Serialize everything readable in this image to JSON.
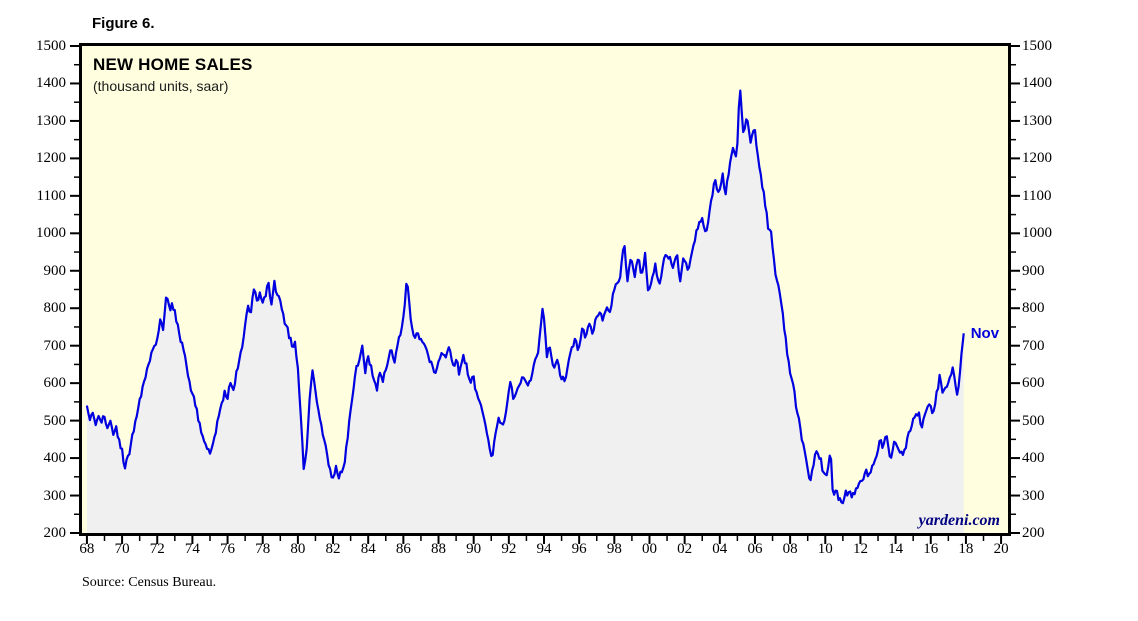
{
  "figure_label": "Figure 6.",
  "source": "Source: Census Bureau.",
  "chart_data": {
    "type": "area",
    "title": "NEW HOME SALES",
    "subtitle": "(thousand units, saar)",
    "watermark": "yardeni.com",
    "legend_position": "none",
    "grid": false,
    "colors": {
      "plot_background": "#ffffe0",
      "area_fill": "#f0f0f0",
      "line": "#0000e0",
      "last_label_color": "#0000dd",
      "watermark_color": "#000080",
      "axis_color": "#000000"
    },
    "x_axis": {
      "label_years_start": 1968,
      "label_step": 2,
      "tick_labels": [
        "68",
        "70",
        "72",
        "74",
        "76",
        "78",
        "80",
        "82",
        "84",
        "86",
        "88",
        "90",
        "92",
        "94",
        "96",
        "98",
        "00",
        "02",
        "04",
        "06",
        "08",
        "10",
        "12",
        "14",
        "16",
        "18",
        "20"
      ],
      "minor_tick_years": [
        1969,
        1971,
        1973,
        1975,
        1977,
        1979,
        1981,
        1983,
        1985,
        1987,
        1989,
        1991,
        1993,
        1995,
        1997,
        1999,
        2001,
        2003,
        2005,
        2007,
        2009,
        2011,
        2013,
        2015,
        2017,
        2019
      ]
    },
    "y_axis": {
      "min": 200,
      "max": 1500,
      "major_tick_values": [
        200,
        300,
        400,
        500,
        600,
        700,
        800,
        900,
        1000,
        1100,
        1200,
        1300,
        1400,
        1500
      ],
      "minor_tick_values": [
        250,
        350,
        450,
        550,
        650,
        750,
        850,
        950,
        1050,
        1150,
        1250,
        1350,
        1450
      ]
    },
    "noise_amplitude": 12,
    "series": [
      {
        "name": "New home sales (thousand units, saar)",
        "last_point_label": "Nov",
        "last_value": 733,
        "points": [
          [
            1968.0,
            540
          ],
          [
            1968.17,
            500
          ],
          [
            1968.33,
            522
          ],
          [
            1968.5,
            488
          ],
          [
            1968.67,
            512
          ],
          [
            1968.83,
            495
          ],
          [
            1969.0,
            510
          ],
          [
            1969.17,
            480
          ],
          [
            1969.33,
            500
          ],
          [
            1969.5,
            462
          ],
          [
            1969.67,
            485
          ],
          [
            1969.83,
            450
          ],
          [
            1970.0,
            425
          ],
          [
            1970.17,
            372
          ],
          [
            1970.33,
            405
          ],
          [
            1970.5,
            438
          ],
          [
            1970.67,
            472
          ],
          [
            1970.83,
            510
          ],
          [
            1971.0,
            558
          ],
          [
            1971.25,
            605
          ],
          [
            1971.5,
            650
          ],
          [
            1971.75,
            690
          ],
          [
            1972.0,
            718
          ],
          [
            1972.17,
            772
          ],
          [
            1972.33,
            740
          ],
          [
            1972.55,
            845
          ],
          [
            1972.7,
            788
          ],
          [
            1972.85,
            812
          ],
          [
            1973.0,
            795
          ],
          [
            1973.17,
            756
          ],
          [
            1973.33,
            710
          ],
          [
            1973.5,
            688
          ],
          [
            1973.67,
            645
          ],
          [
            1973.83,
            605
          ],
          [
            1974.0,
            572
          ],
          [
            1974.17,
            540
          ],
          [
            1974.33,
            500
          ],
          [
            1974.5,
            468
          ],
          [
            1974.67,
            445
          ],
          [
            1974.83,
            425
          ],
          [
            1975.0,
            412
          ],
          [
            1975.17,
            438
          ],
          [
            1975.33,
            465
          ],
          [
            1975.5,
            512
          ],
          [
            1975.67,
            548
          ],
          [
            1975.83,
            580
          ],
          [
            1976.0,
            558
          ],
          [
            1976.17,
            602
          ],
          [
            1976.33,
            580
          ],
          [
            1976.5,
            632
          ],
          [
            1976.67,
            662
          ],
          [
            1976.83,
            695
          ],
          [
            1977.0,
            755
          ],
          [
            1977.17,
            808
          ],
          [
            1977.33,
            788
          ],
          [
            1977.5,
            850
          ],
          [
            1977.67,
            820
          ],
          [
            1977.83,
            842
          ],
          [
            1978.0,
            815
          ],
          [
            1978.17,
            832
          ],
          [
            1978.33,
            868
          ],
          [
            1978.5,
            810
          ],
          [
            1978.67,
            875
          ],
          [
            1978.83,
            835
          ],
          [
            1979.0,
            820
          ],
          [
            1979.17,
            785
          ],
          [
            1979.33,
            755
          ],
          [
            1979.5,
            720
          ],
          [
            1979.67,
            698
          ],
          [
            1979.83,
            712
          ],
          [
            1980.0,
            640
          ],
          [
            1980.17,
            510
          ],
          [
            1980.33,
            370
          ],
          [
            1980.5,
            425
          ],
          [
            1980.67,
            560
          ],
          [
            1980.83,
            635
          ],
          [
            1981.0,
            578
          ],
          [
            1981.17,
            528
          ],
          [
            1981.33,
            490
          ],
          [
            1981.5,
            448
          ],
          [
            1981.67,
            408
          ],
          [
            1981.83,
            372
          ],
          [
            1982.0,
            348
          ],
          [
            1982.17,
            380
          ],
          [
            1982.33,
            345
          ],
          [
            1982.5,
            362
          ],
          [
            1982.67,
            390
          ],
          [
            1982.83,
            452
          ],
          [
            1983.0,
            528
          ],
          [
            1983.17,
            588
          ],
          [
            1983.33,
            645
          ],
          [
            1983.5,
            662
          ],
          [
            1983.67,
            700
          ],
          [
            1983.83,
            625
          ],
          [
            1984.0,
            672
          ],
          [
            1984.17,
            648
          ],
          [
            1984.33,
            608
          ],
          [
            1984.5,
            580
          ],
          [
            1984.67,
            628
          ],
          [
            1984.83,
            602
          ],
          [
            1985.0,
            635
          ],
          [
            1985.17,
            668
          ],
          [
            1985.33,
            688
          ],
          [
            1985.5,
            655
          ],
          [
            1985.67,
            702
          ],
          [
            1985.83,
            728
          ],
          [
            1986.0,
            778
          ],
          [
            1986.2,
            880
          ],
          [
            1986.4,
            772
          ],
          [
            1986.6,
            722
          ],
          [
            1986.8,
            742
          ],
          [
            1987.0,
            718
          ],
          [
            1987.2,
            702
          ],
          [
            1987.4,
            672
          ],
          [
            1987.6,
            655
          ],
          [
            1987.8,
            622
          ],
          [
            1988.0,
            658
          ],
          [
            1988.2,
            688
          ],
          [
            1988.4,
            668
          ],
          [
            1988.6,
            698
          ],
          [
            1988.8,
            652
          ],
          [
            1989.0,
            662
          ],
          [
            1989.2,
            622
          ],
          [
            1989.4,
            678
          ],
          [
            1989.6,
            648
          ],
          [
            1989.8,
            602
          ],
          [
            1990.0,
            618
          ],
          [
            1990.2,
            560
          ],
          [
            1990.4,
            542
          ],
          [
            1990.6,
            502
          ],
          [
            1990.8,
            462
          ],
          [
            1991.05,
            400
          ],
          [
            1991.25,
            468
          ],
          [
            1991.45,
            508
          ],
          [
            1991.65,
            488
          ],
          [
            1991.85,
            522
          ],
          [
            1992.05,
            605
          ],
          [
            1992.25,
            558
          ],
          [
            1992.45,
            572
          ],
          [
            1992.65,
            598
          ],
          [
            1992.85,
            618
          ],
          [
            1993.05,
            590
          ],
          [
            1993.25,
            608
          ],
          [
            1993.45,
            648
          ],
          [
            1993.65,
            675
          ],
          [
            1993.95,
            810
          ],
          [
            1994.15,
            668
          ],
          [
            1994.35,
            698
          ],
          [
            1994.55,
            632
          ],
          [
            1994.75,
            662
          ],
          [
            1994.95,
            618
          ],
          [
            1995.15,
            602
          ],
          [
            1995.35,
            642
          ],
          [
            1995.55,
            688
          ],
          [
            1995.75,
            718
          ],
          [
            1995.95,
            682
          ],
          [
            1996.15,
            748
          ],
          [
            1996.35,
            718
          ],
          [
            1996.55,
            762
          ],
          [
            1996.75,
            732
          ],
          [
            1996.95,
            782
          ],
          [
            1997.15,
            792
          ],
          [
            1997.35,
            762
          ],
          [
            1997.55,
            812
          ],
          [
            1997.75,
            790
          ],
          [
            1997.95,
            842
          ],
          [
            1998.15,
            862
          ],
          [
            1998.35,
            888
          ],
          [
            1998.55,
            985
          ],
          [
            1998.75,
            872
          ],
          [
            1998.95,
            940
          ],
          [
            1999.15,
            882
          ],
          [
            1999.35,
            932
          ],
          [
            1999.55,
            892
          ],
          [
            1999.75,
            948
          ],
          [
            1999.95,
            832
          ],
          [
            2000.15,
            878
          ],
          [
            2000.35,
            922
          ],
          [
            2000.55,
            852
          ],
          [
            2000.75,
            912
          ],
          [
            2000.95,
            948
          ],
          [
            2001.15,
            938
          ],
          [
            2001.35,
            902
          ],
          [
            2001.55,
            948
          ],
          [
            2001.75,
            872
          ],
          [
            2001.95,
            942
          ],
          [
            2002.15,
            902
          ],
          [
            2002.35,
            932
          ],
          [
            2002.55,
            978
          ],
          [
            2002.75,
            1012
          ],
          [
            2002.95,
            1042
          ],
          [
            2003.15,
            1005
          ],
          [
            2003.35,
            1032
          ],
          [
            2003.55,
            1098
          ],
          [
            2003.75,
            1142
          ],
          [
            2003.95,
            1102
          ],
          [
            2004.15,
            1162
          ],
          [
            2004.35,
            1102
          ],
          [
            2004.55,
            1182
          ],
          [
            2004.75,
            1228
          ],
          [
            2004.95,
            1198
          ],
          [
            2005.15,
            1389
          ],
          [
            2005.35,
            1262
          ],
          [
            2005.55,
            1312
          ],
          [
            2005.75,
            1242
          ],
          [
            2005.95,
            1288
          ],
          [
            2006.15,
            1212
          ],
          [
            2006.35,
            1152
          ],
          [
            2006.55,
            1092
          ],
          [
            2006.75,
            1012
          ],
          [
            2006.95,
            998
          ],
          [
            2007.15,
            892
          ],
          [
            2007.35,
            858
          ],
          [
            2007.55,
            798
          ],
          [
            2007.75,
            722
          ],
          [
            2007.95,
            642
          ],
          [
            2008.15,
            602
          ],
          [
            2008.35,
            532
          ],
          [
            2008.55,
            488
          ],
          [
            2008.75,
            438
          ],
          [
            2008.95,
            388
          ],
          [
            2009.1,
            338
          ],
          [
            2009.3,
            372
          ],
          [
            2009.5,
            418
          ],
          [
            2009.7,
            402
          ],
          [
            2009.9,
            362
          ],
          [
            2010.1,
            352
          ],
          [
            2010.3,
            422
          ],
          [
            2010.45,
            282
          ],
          [
            2010.6,
            312
          ],
          [
            2010.75,
            288
          ],
          [
            2010.9,
            278
          ],
          [
            2011.1,
            298
          ],
          [
            2011.3,
            312
          ],
          [
            2011.5,
            295
          ],
          [
            2011.7,
            308
          ],
          [
            2011.9,
            328
          ],
          [
            2012.1,
            342
          ],
          [
            2012.3,
            368
          ],
          [
            2012.5,
            358
          ],
          [
            2012.7,
            382
          ],
          [
            2012.9,
            398
          ],
          [
            2013.1,
            448
          ],
          [
            2013.3,
            432
          ],
          [
            2013.5,
            458
          ],
          [
            2013.7,
            388
          ],
          [
            2013.9,
            442
          ],
          [
            2014.1,
            432
          ],
          [
            2014.3,
            408
          ],
          [
            2014.5,
            422
          ],
          [
            2014.7,
            458
          ],
          [
            2014.9,
            482
          ],
          [
            2015.1,
            512
          ],
          [
            2015.3,
            522
          ],
          [
            2015.5,
            482
          ],
          [
            2015.7,
            522
          ],
          [
            2015.9,
            542
          ],
          [
            2016.1,
            522
          ],
          [
            2016.3,
            562
          ],
          [
            2016.5,
            622
          ],
          [
            2016.7,
            572
          ],
          [
            2016.9,
            592
          ],
          [
            2017.1,
            615
          ],
          [
            2017.25,
            642
          ],
          [
            2017.4,
            592
          ],
          [
            2017.55,
            572
          ],
          [
            2017.7,
            648
          ],
          [
            2017.875,
            733
          ]
        ]
      }
    ]
  }
}
